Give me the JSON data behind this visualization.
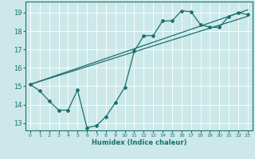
{
  "title": "",
  "xlabel": "Humidex (Indice chaleur)",
  "bg_color": "#cce8e8",
  "line_color": "#1a7070",
  "grid_color": "#ffffff",
  "xlim": [
    -0.5,
    23.5
  ],
  "ylim": [
    12.6,
    19.6
  ],
  "xticks": [
    0,
    1,
    2,
    3,
    4,
    5,
    6,
    7,
    8,
    9,
    10,
    11,
    12,
    13,
    14,
    15,
    16,
    17,
    18,
    19,
    20,
    21,
    22,
    23
  ],
  "yticks": [
    13,
    14,
    15,
    16,
    17,
    18,
    19
  ],
  "line1_x": [
    0,
    1,
    2,
    3,
    4,
    5,
    6,
    7,
    8,
    9,
    10,
    11,
    12,
    13,
    14,
    15,
    16,
    17,
    18,
    19,
    20,
    21,
    22,
    23
  ],
  "line1_y": [
    15.1,
    14.75,
    14.2,
    13.7,
    13.7,
    14.8,
    12.75,
    12.85,
    13.35,
    14.1,
    14.95,
    16.9,
    17.75,
    17.75,
    18.55,
    18.55,
    19.1,
    19.05,
    18.35,
    18.2,
    18.2,
    18.8,
    19.0,
    18.9
  ],
  "line2_x": [
    0,
    23
  ],
  "line2_y": [
    15.1,
    19.15
  ],
  "line3_x": [
    0,
    23
  ],
  "line3_y": [
    15.1,
    18.8
  ]
}
